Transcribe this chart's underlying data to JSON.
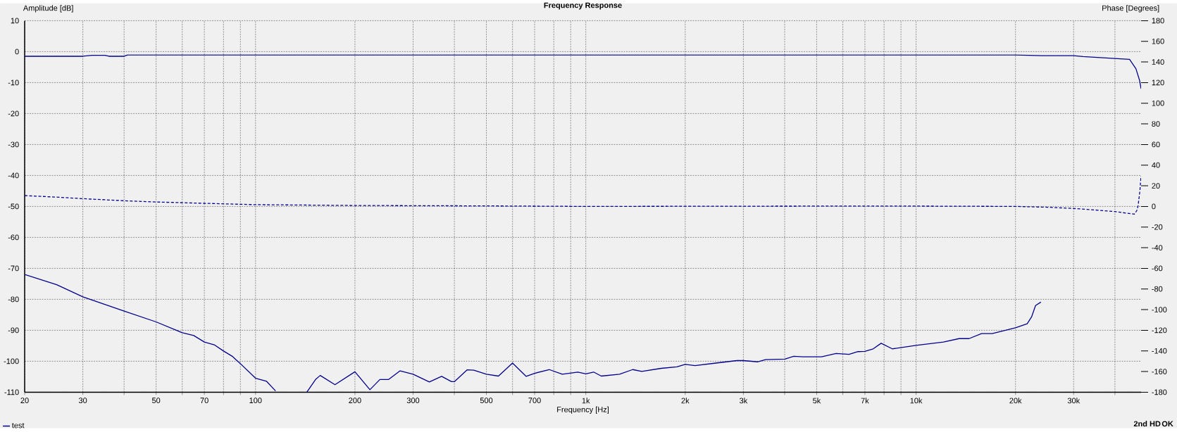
{
  "chart_data": {
    "type": "line",
    "title": "Frequency Response",
    "xlabel": "Frequency [Hz]",
    "ylabel": "Amplitude [dB]",
    "y2label": "Phase [Degrees]",
    "annotations": [
      "2nd HD",
      "OK"
    ],
    "log": "x",
    "grid": true,
    "legend": "bottom left",
    "xlim": [
      20,
      48000
    ],
    "ylim": [
      -110,
      10
    ],
    "y2lim": [
      -180,
      180
    ],
    "xticks": [
      20,
      30,
      {
        "value": 40,
        "label": null
      },
      50,
      {
        "value": 60,
        "label": null
      },
      70,
      {
        "value": 80,
        "label": null
      },
      {
        "value": 90,
        "label": null
      },
      100,
      200,
      300,
      {
        "value": 400,
        "label": null
      },
      500,
      {
        "value": 600,
        "label": null
      },
      700,
      {
        "value": 800,
        "label": null
      },
      {
        "value": 900,
        "label": null
      },
      {
        "value": 1000,
        "label": "1k"
      },
      {
        "value": 2000,
        "label": "2k"
      },
      {
        "value": 3000,
        "label": "3k"
      },
      {
        "value": 4000,
        "label": null
      },
      {
        "value": 5000,
        "label": "5k"
      },
      {
        "value": 6000,
        "label": null
      },
      {
        "value": 7000,
        "label": "7k"
      },
      {
        "value": 8000,
        "label": null
      },
      {
        "value": 9000,
        "label": null
      },
      {
        "value": 10000,
        "label": "10k"
      },
      {
        "value": 20000,
        "label": "20k"
      },
      {
        "value": 30000,
        "label": "30k"
      },
      {
        "value": 40000,
        "label": null
      }
    ],
    "yticks": [
      -110,
      -100,
      -90,
      -80,
      -70,
      -60,
      -50,
      -40,
      -30,
      -20,
      -10,
      0,
      10
    ],
    "y2ticks": [
      -180,
      -160,
      -140,
      -120,
      -100,
      -80,
      -60,
      -40,
      -20,
      0,
      20,
      40,
      60,
      80,
      100,
      120,
      140,
      160,
      180
    ],
    "series": [
      {
        "name": "test",
        "color": "#00008b",
        "line_style": "solid",
        "x": [
          20,
          30,
          32,
          35,
          36,
          40,
          41,
          100,
          1000,
          10000,
          20000,
          24000,
          30000,
          32000,
          40000,
          44300,
          46300,
          47500,
          48000
        ],
        "values": [
          -1.5,
          -1.5,
          -1.2,
          -1.2,
          -1.5,
          -1.5,
          -1.1,
          -1.1,
          -1.1,
          -1.1,
          -1.1,
          -1.3,
          -1.3,
          -1.6,
          -2.2,
          -2.5,
          -5.5,
          -9.3,
          -12.0
        ]
      },
      {
        "color": "#00008b",
        "line_style": "dashed",
        "axis": "y2",
        "x": [
          20,
          25,
          30,
          40,
          50,
          70,
          100,
          200,
          500,
          1000,
          5000,
          10000,
          20000,
          25000,
          30000,
          35000,
          40000,
          45800,
          46600,
          47000,
          47600,
          48000
        ],
        "values": [
          10.5,
          9,
          7.5,
          5.5,
          4.3,
          3,
          1.7,
          0.9,
          0.5,
          0,
          0.3,
          0.3,
          0,
          -0.8,
          -2,
          -3.5,
          -5,
          -7.5,
          -4,
          0.5,
          15,
          29.5
        ]
      },
      {
        "color": "#00008b",
        "line_style": "solid",
        "x": [
          20,
          25,
          30,
          40,
          50,
          60,
          65,
          70,
          75,
          80,
          85,
          90,
          100,
          108,
          115,
          130,
          143,
          152,
          157,
          174,
          200,
          222,
          238,
          253,
          274,
          300,
          336,
          366,
          392,
          400,
          437,
          458,
          500,
          544,
          600,
          660,
          700,
          775,
          849,
          946,
          1000,
          1056,
          1114,
          1265,
          1387,
          1477,
          1693,
          1888,
          2000,
          2142,
          2480,
          2866,
          3000,
          3311,
          3500,
          4006,
          4263,
          4539,
          5174,
          5728,
          6266,
          6672,
          7000,
          7418,
          7838,
          8470,
          10000,
          12100,
          13500,
          14470,
          15780,
          17000,
          20000,
          21700,
          22370,
          23000,
          23870
        ],
        "values": [
          -72,
          -75.3,
          -79.2,
          -83.8,
          -87.3,
          -90.8,
          -91.7,
          -93.8,
          -94.7,
          -96.7,
          -98.4,
          -100.8,
          -105.5,
          -106.5,
          -109.6,
          null,
          -110,
          -105.9,
          -104.6,
          -107.6,
          -103.4,
          -109.2,
          -105.9,
          -105.9,
          -103.1,
          -104.2,
          -106.7,
          -104.9,
          -106.6,
          -106.6,
          -102.8,
          -102.9,
          -104.2,
          -104.8,
          -100.6,
          -104.9,
          -103.9,
          -102.7,
          -104.2,
          -103.5,
          -104.1,
          -103.5,
          -104.8,
          -104.2,
          -102.7,
          -103.3,
          -102.3,
          -101.8,
          -101.0,
          -101.4,
          -100.6,
          -99.8,
          -99.8,
          -100.2,
          -99.5,
          -99.3,
          -98.4,
          -98.6,
          -98.6,
          -97.5,
          -97.8,
          -96.9,
          -96.8,
          -96.0,
          -94.2,
          -96.0,
          -94.9,
          -93.8,
          -92.7,
          -92.7,
          -91.1,
          -91.1,
          -89.2,
          -87.9,
          -85.7,
          -82.0,
          -80.9
        ]
      }
    ]
  }
}
